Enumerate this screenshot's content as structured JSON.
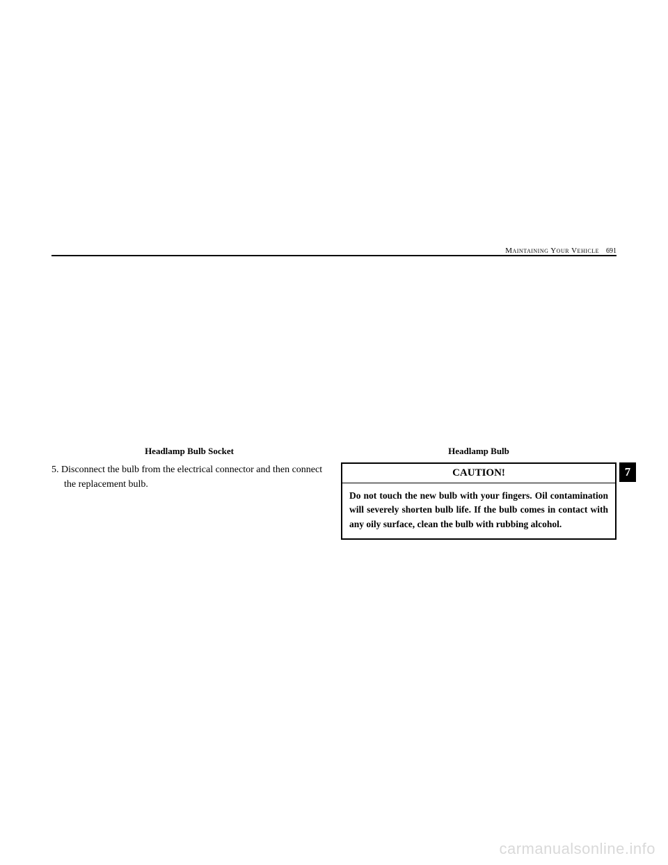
{
  "header": {
    "section_title": "Maintaining Your Vehicle",
    "page_number": "691"
  },
  "left_column": {
    "figure_caption": "Headlamp Bulb Socket",
    "step": "5. Disconnect the bulb from the electrical connector and then connect the replacement bulb."
  },
  "right_column": {
    "figure_caption": "Headlamp Bulb",
    "caution_title": "CAUTION!",
    "caution_body": "Do not touch the new bulb with your fingers. Oil contamination will severely shorten bulb life. If the bulb comes in contact with any oily surface, clean the bulb with rubbing alcohol."
  },
  "side_tab": "7",
  "watermark": "carmanualsonline.info"
}
